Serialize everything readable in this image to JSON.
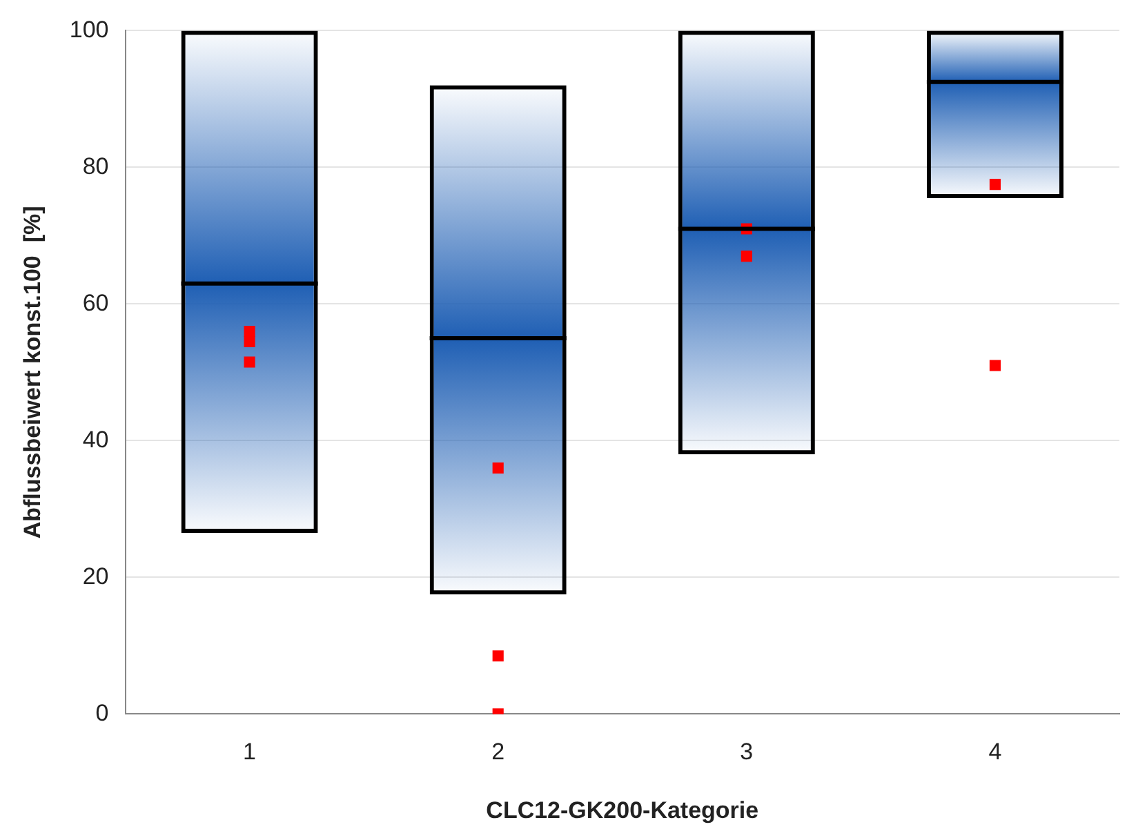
{
  "chart_data": {
    "type": "box",
    "xlabel": "CLC12-GK200-Kategorie",
    "ylabel": "Abflussbeiwert konst.100  [%]",
    "categories": [
      "1",
      "2",
      "3",
      "4"
    ],
    "color": "#000000",
    "boxes": [
      {
        "low": 26.5,
        "q1": 26.5,
        "median": 63,
        "q3": 100,
        "high": 100
      },
      {
        "low": 17.5,
        "q1": 17.5,
        "median": 55,
        "q3": 92,
        "high": 92
      },
      {
        "low": 38,
        "q1": 38,
        "median": 71,
        "q3": 100,
        "high": 100
      },
      {
        "low": 75.5,
        "q1": 75.5,
        "median": 92.5,
        "q3": 100,
        "high": 100
      }
    ],
    "series": [
      {
        "type": "scatter",
        "x": [
          "1",
          "1",
          "1",
          "2",
          "2",
          "2",
          "3",
          "3",
          "4",
          "4"
        ],
        "values": [
          56,
          54.5,
          51.5,
          36,
          8.5,
          0,
          71,
          67,
          77.5,
          51
        ],
        "color": "#ff0000"
      }
    ],
    "ylim": [
      0,
      100
    ],
    "yticks": [
      0,
      20,
      40,
      60,
      80,
      100
    ],
    "grid": "y",
    "legend": false
  }
}
